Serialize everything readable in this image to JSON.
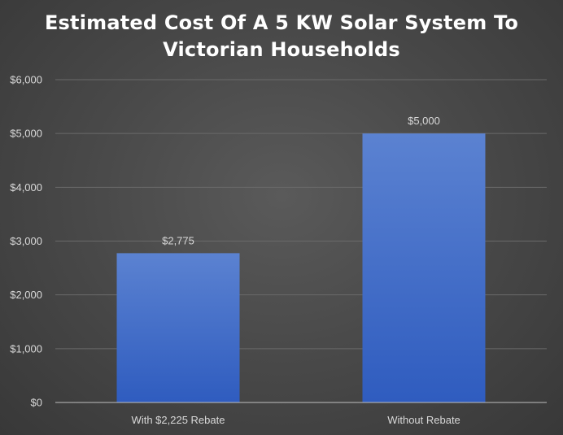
{
  "chart_data": {
    "type": "bar",
    "title_lines": [
      "Estimated Cost Of A 5 KW Solar System To",
      "Victorian Households"
    ],
    "categories": [
      "With $2,225 Rebate",
      "Without Rebate"
    ],
    "values": [
      2775,
      5000
    ],
    "data_labels": [
      "$2,775",
      "$5,000"
    ],
    "ylim": [
      0,
      6000
    ],
    "yticks": [
      0,
      1000,
      2000,
      3000,
      4000,
      5000,
      6000
    ],
    "ytick_labels": [
      "$0",
      "$1,000",
      "$2,000",
      "$3,000",
      "$4,000",
      "$5,000",
      "$6,000"
    ],
    "xlabel": "",
    "ylabel": "",
    "grid": true,
    "legend": "none",
    "bar_color_top": "#5b82d1",
    "bar_color_bottom": "#2f5cbf",
    "background_color": "#4a4a4a"
  }
}
